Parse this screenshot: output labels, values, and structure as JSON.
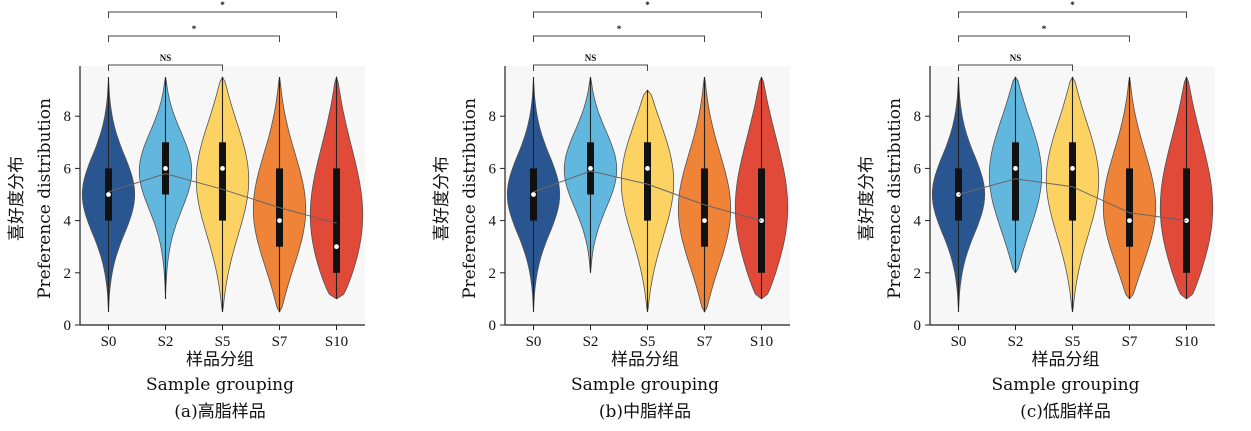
{
  "panels": [
    {
      "caption": "(a)高脂样品",
      "xlabel_cn": "样品分组",
      "xlabel_en": "Sample grouping",
      "ylabel_cn": "喜好度分布",
      "ylabel_en": "Preference distribution",
      "chart_data": {
        "type": "violin",
        "categories": [
          "S0",
          "S2",
          "S5",
          "S7",
          "S10"
        ],
        "colors": [
          "#1f4e8c",
          "#5ab4dc",
          "#fdd25b",
          "#ef7d2d",
          "#e0402f"
        ],
        "ylim": [
          0,
          10
        ],
        "yticks": [
          0,
          2,
          4,
          6,
          8
        ],
        "q1": [
          4,
          5,
          4,
          3,
          2
        ],
        "median": [
          5,
          6,
          6,
          4,
          3
        ],
        "q3": [
          6,
          7,
          7,
          6,
          6
        ],
        "whisker_min": [
          0.5,
          1,
          0.5,
          0.5,
          1
        ],
        "whisker_max": [
          9.5,
          9.5,
          9.5,
          9.5,
          9.5
        ],
        "means": [
          5.1,
          5.8,
          5.2,
          4.5,
          3.9
        ],
        "significance": [
          {
            "from": "S0",
            "to": "S5",
            "label": "NS"
          },
          {
            "from": "S0",
            "to": "S7",
            "label": "*"
          },
          {
            "from": "S0",
            "to": "S10",
            "label": "*"
          }
        ]
      }
    },
    {
      "caption": "(b)中脂样品",
      "xlabel_cn": "样品分组",
      "xlabel_en": "Sample grouping",
      "ylabel_cn": "喜好度分布",
      "ylabel_en": "Preference distribution",
      "chart_data": {
        "type": "violin",
        "categories": [
          "S0",
          "S2",
          "S5",
          "S7",
          "S10"
        ],
        "colors": [
          "#1f4e8c",
          "#5ab4dc",
          "#fdd25b",
          "#ef7d2d",
          "#e0402f"
        ],
        "ylim": [
          0,
          10
        ],
        "yticks": [
          0,
          2,
          4,
          6,
          8
        ],
        "q1": [
          4,
          5,
          4,
          3,
          2
        ],
        "median": [
          5,
          6,
          6,
          4,
          4
        ],
        "q3": [
          6,
          7,
          7,
          6,
          6
        ],
        "whisker_min": [
          0.5,
          2,
          0.5,
          0.5,
          1
        ],
        "whisker_max": [
          9.5,
          9.5,
          9,
          9.5,
          9.5
        ],
        "means": [
          5.1,
          5.9,
          5.4,
          4.6,
          4.0
        ],
        "significance": [
          {
            "from": "S0",
            "to": "S5",
            "label": "NS"
          },
          {
            "from": "S0",
            "to": "S7",
            "label": "*"
          },
          {
            "from": "S0",
            "to": "S10",
            "label": "*"
          }
        ]
      }
    },
    {
      "caption": "(c)低脂样品",
      "xlabel_cn": "样品分组",
      "xlabel_en": "Sample grouping",
      "ylabel_cn": "喜好度分布",
      "ylabel_en": "Preference distribution",
      "chart_data": {
        "type": "violin",
        "categories": [
          "S0",
          "S2",
          "S5",
          "S7",
          "S10"
        ],
        "colors": [
          "#1f4e8c",
          "#5ab4dc",
          "#fdd25b",
          "#ef7d2d",
          "#e0402f"
        ],
        "ylim": [
          0,
          10
        ],
        "yticks": [
          0,
          2,
          4,
          6,
          8
        ],
        "q1": [
          4,
          4,
          4,
          3,
          2
        ],
        "median": [
          5,
          6,
          6,
          4,
          4
        ],
        "q3": [
          6,
          7,
          7,
          6,
          6
        ],
        "whisker_min": [
          0.5,
          2,
          0.5,
          1,
          1
        ],
        "whisker_max": [
          9.5,
          9.5,
          9.5,
          9.5,
          9.5
        ],
        "means": [
          5.0,
          5.6,
          5.3,
          4.3,
          4.0
        ],
        "significance": [
          {
            "from": "S0",
            "to": "S5",
            "label": "NS"
          },
          {
            "from": "S0",
            "to": "S7",
            "label": "*"
          },
          {
            "from": "S0",
            "to": "S10",
            "label": "*"
          }
        ]
      }
    }
  ]
}
